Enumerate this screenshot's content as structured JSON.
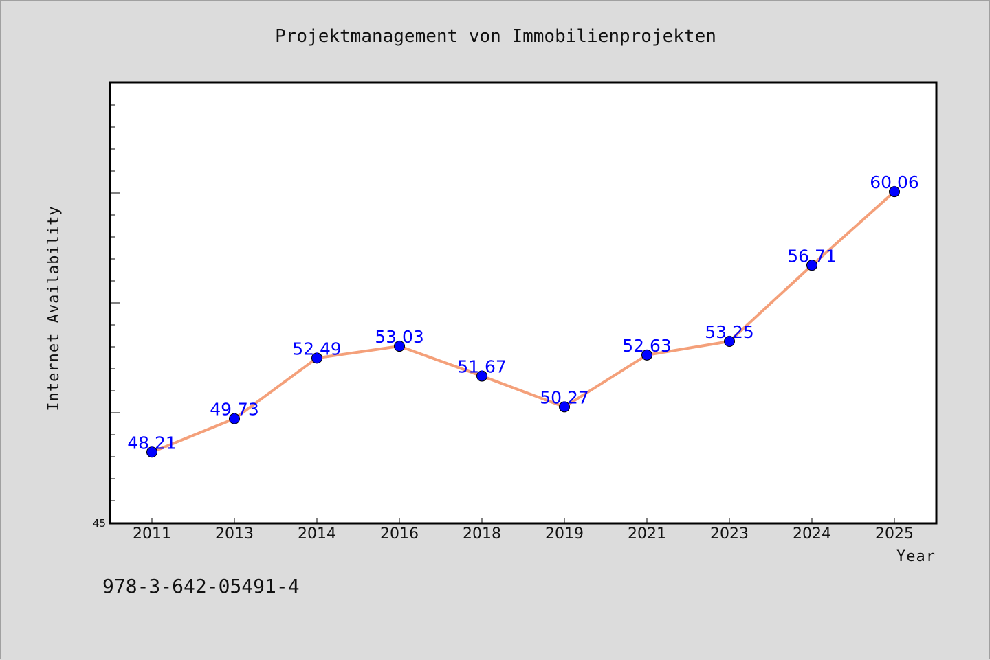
{
  "chart_data": {
    "type": "line",
    "title": "Projektmanagement von Immobilienprojekten",
    "xlabel": "Year",
    "ylabel": "Internet Availability",
    "categories": [
      "2011",
      "2013",
      "2014",
      "2016",
      "2018",
      "2019",
      "2021",
      "2023",
      "2024",
      "2025"
    ],
    "values": [
      48.21,
      49.73,
      52.49,
      53.03,
      51.67,
      50.27,
      52.63,
      53.25,
      56.71,
      60.06
    ],
    "data_labels": [
      "48.21",
      "49.73",
      "52.49",
      "53.03",
      "51.67",
      "50.27",
      "52.63",
      "53.25",
      "56.71",
      "60.06"
    ],
    "ylim": [
      45,
      65
    ],
    "yticks_labeled": [
      "45"
    ],
    "grid": false,
    "line_color": "#f4a07a",
    "marker_color": "#0000ff",
    "label_color": "#0000ff"
  },
  "footnote": "978-3-642-05491-4"
}
